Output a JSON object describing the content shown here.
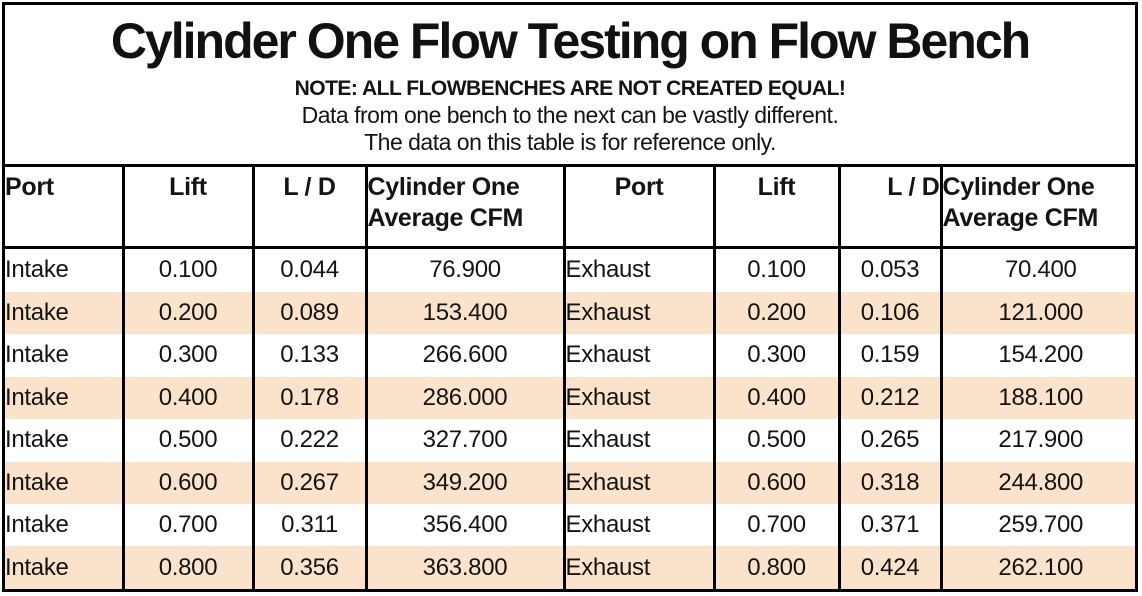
{
  "title": "Cylinder One Flow Testing on Flow Bench",
  "notes": {
    "line1": "NOTE: ALL FLOWBENCHES ARE NOT CREATED EQUAL!",
    "line2": "Data from one bench to the next can be vastly different.",
    "line3": "The data on this table is for reference only."
  },
  "colors": {
    "row_highlight": "#FBE3CB",
    "border": "#000000",
    "text": "#141414",
    "background": "#FFFFFF"
  },
  "table": {
    "headers": [
      "Port",
      "Lift",
      "L / D",
      "Cylinder One Average CFM",
      "Port",
      "Lift",
      "L / D",
      "Cylinder One Average CFM"
    ],
    "rows": [
      [
        "Intake",
        "0.100",
        "0.044",
        "76.900",
        "Exhaust",
        "0.100",
        "0.053",
        "70.400"
      ],
      [
        "Intake",
        "0.200",
        "0.089",
        "153.400",
        "Exhaust",
        "0.200",
        "0.106",
        "121.000"
      ],
      [
        "Intake",
        "0.300",
        "0.133",
        "266.600",
        "Exhaust",
        "0.300",
        "0.159",
        "154.200"
      ],
      [
        "Intake",
        "0.400",
        "0.178",
        "286.000",
        "Exhaust",
        "0.400",
        "0.212",
        "188.100"
      ],
      [
        "Intake",
        "0.500",
        "0.222",
        "327.700",
        "Exhaust",
        "0.500",
        "0.265",
        "217.900"
      ],
      [
        "Intake",
        "0.600",
        "0.267",
        "349.200",
        "Exhaust",
        "0.600",
        "0.318",
        "244.800"
      ],
      [
        "Intake",
        "0.700",
        "0.311",
        "356.400",
        "Exhaust",
        "0.700",
        "0.371",
        "259.700"
      ],
      [
        "Intake",
        "0.800",
        "0.356",
        "363.800",
        "Exhaust",
        "0.800",
        "0.424",
        "262.100"
      ]
    ]
  }
}
